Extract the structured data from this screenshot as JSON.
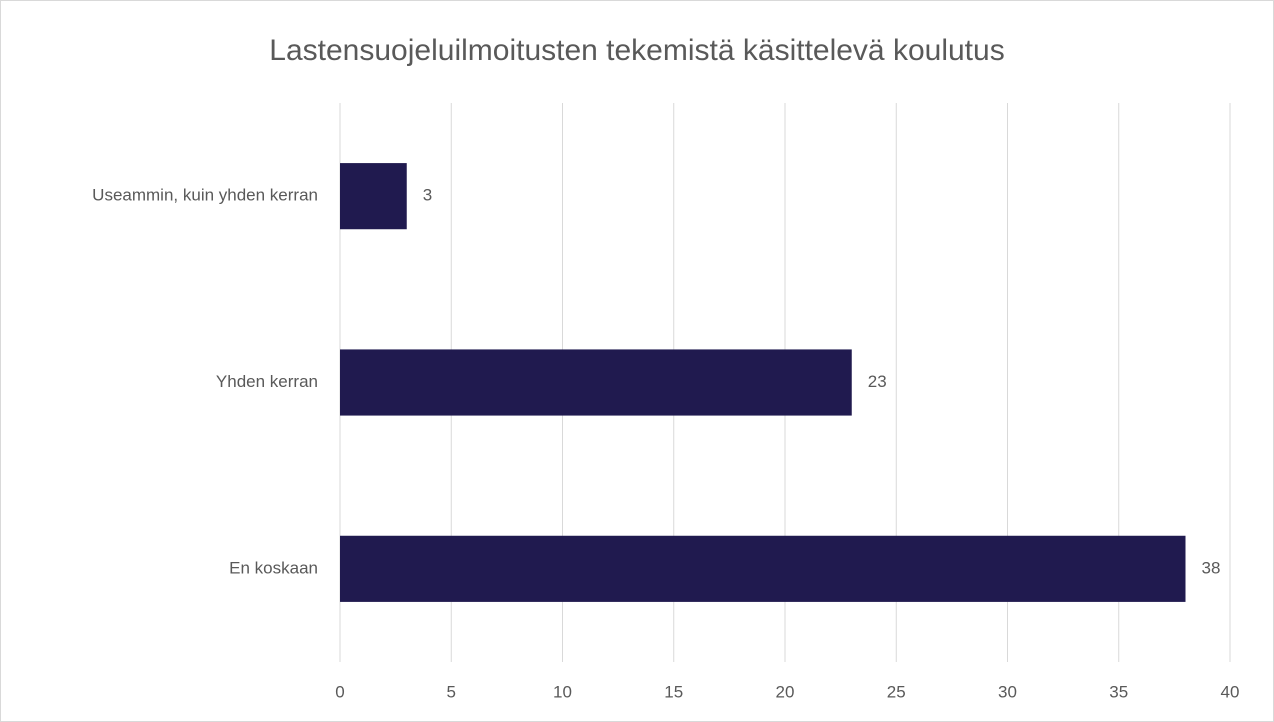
{
  "chart_data": {
    "type": "bar",
    "orientation": "horizontal",
    "title": "Lastensuojeluilmoitusten tekemistä käsittelevä koulutus",
    "categories": [
      "Useammin, kuin yhden kerran",
      "Yhden kerran",
      "En koskaan"
    ],
    "values": [
      3,
      23,
      38
    ],
    "color": "#201a4f",
    "xlim": [
      0,
      40
    ],
    "xticks": [
      0,
      5,
      10,
      15,
      20,
      25,
      30,
      35,
      40
    ],
    "grid": true
  }
}
